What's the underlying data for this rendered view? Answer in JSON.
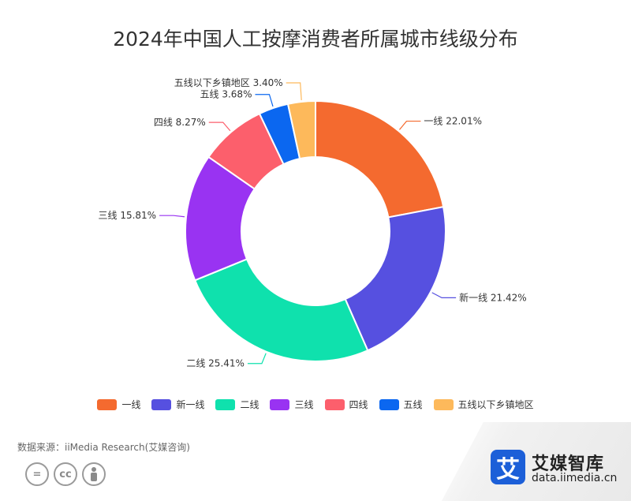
{
  "chart_data": {
    "type": "pie",
    "title": "2024年中国人工按摩消费者所属城市线级分布",
    "slices": [
      {
        "name": "一线",
        "value": 22.01,
        "label": "一线 22.01%",
        "color": "#f46a2f"
      },
      {
        "name": "新一线",
        "value": 21.42,
        "label": "新一线 21.42%",
        "color": "#5650e0"
      },
      {
        "name": "二线",
        "value": 25.41,
        "label": "二线 25.41%",
        "color": "#0fe1ad"
      },
      {
        "name": "三线",
        "value": 15.81,
        "label": "三线 15.81%",
        "color": "#9933f2"
      },
      {
        "name": "四线",
        "value": 8.27,
        "label": "四线 8.27%",
        "color": "#fc5f6c"
      },
      {
        "name": "五线",
        "value": 3.68,
        "label": "五线 3.68%",
        "color": "#0b67f0"
      },
      {
        "name": "五线以下乡镇地区",
        "value": 3.4,
        "label": "五线以下乡镇地区 3.40%",
        "color": "#fdb95b"
      }
    ],
    "legend_position": "bottom"
  },
  "footer": {
    "source": "数据来源：iiMedia Research(艾媒咨询)",
    "license_icons": [
      "equals-icon",
      "cc-icon",
      "person-icon"
    ],
    "license_text": [
      "=",
      "cc"
    ],
    "brand_logo_char": "艾",
    "brand_name": "艾媒智库",
    "brand_url": "data.iimedia.cn"
  }
}
